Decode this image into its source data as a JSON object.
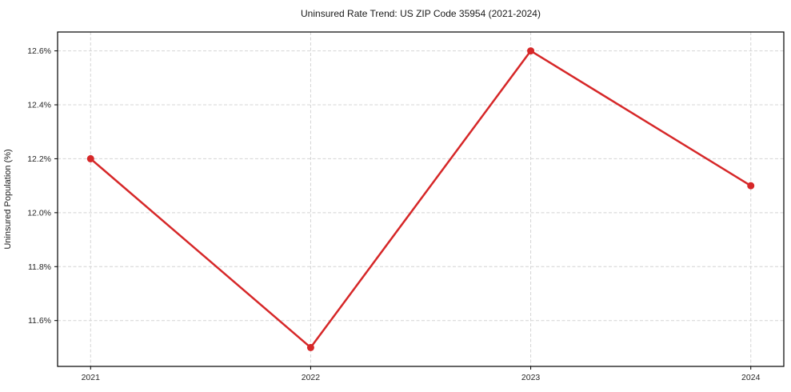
{
  "chart_data": {
    "type": "line",
    "title": "Uninsured Rate Trend: US ZIP Code 35954 (2021-2024)",
    "xlabel": "",
    "ylabel": "Uninsured Population (%)",
    "categories": [
      "2021",
      "2022",
      "2023",
      "2024"
    ],
    "values": [
      12.2,
      11.5,
      12.6,
      12.1
    ],
    "ytick_values": [
      11.6,
      11.8,
      12.0,
      12.2,
      12.4,
      12.6
    ],
    "ytick_labels": [
      "11.6%",
      "11.8%",
      "12.0%",
      "12.2%",
      "12.4%",
      "12.6%"
    ],
    "ylim": [
      11.43,
      12.67
    ],
    "grid": true,
    "legend_position": "none",
    "colors": {
      "line": "#d62728",
      "marker": "#d62728",
      "grid": "#d4d4d4",
      "spine": "#000000",
      "background": "#ffffff"
    }
  }
}
